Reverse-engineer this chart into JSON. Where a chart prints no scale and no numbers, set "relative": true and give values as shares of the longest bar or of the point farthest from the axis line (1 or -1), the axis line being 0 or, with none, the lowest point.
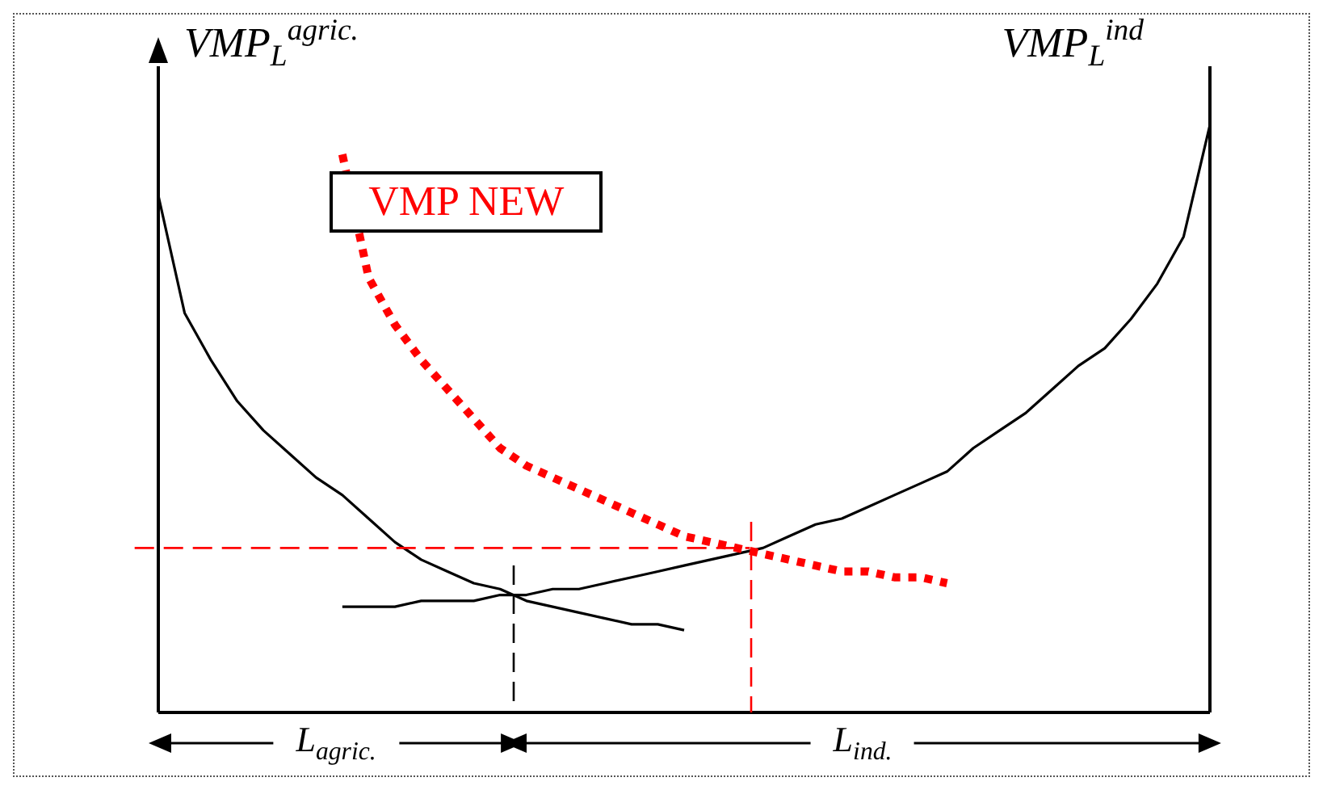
{
  "chart_data": {
    "type": "line",
    "relative": true,
    "ylabel": "VMP$_{L}$$^{agric.}$",
    "y2label": "VMP$_{L}$$^{ind}$",
    "legend": false,
    "grid": false,
    "marker": "none",
    "categories": [
      null,
      null,
      null,
      null,
      null,
      null,
      null,
      null,
      null,
      null,
      null,
      null,
      null,
      null,
      null,
      null,
      null,
      null,
      null,
      null,
      null,
      null,
      null,
      null,
      null,
      null,
      null,
      null,
      null,
      null,
      null,
      null,
      null,
      null,
      null,
      null,
      null,
      null,
      null,
      null,
      null
    ],
    "series": [
      {
        "color": "#000000",
        "line_style": "solid",
        "values": [
          0.88,
          0.68,
          0.6,
          0.53,
          0.48,
          0.44,
          0.4,
          0.37,
          0.33,
          0.29,
          0.26,
          0.24,
          0.22,
          0.21,
          0.19,
          0.18,
          0.17,
          0.16,
          0.15,
          0.15,
          0.14,
          null,
          null,
          null,
          null,
          null,
          null,
          null,
          null,
          null,
          null,
          null,
          null,
          null,
          null,
          null,
          null,
          null,
          null,
          null,
          null
        ]
      },
      {
        "color": "#000000",
        "line_style": "solid",
        "values": [
          null,
          null,
          null,
          null,
          null,
          null,
          null,
          0.18,
          0.18,
          0.18,
          0.19,
          0.19,
          0.19,
          0.2,
          0.2,
          0.21,
          0.21,
          0.22,
          0.23,
          0.24,
          0.25,
          0.26,
          0.27,
          0.28,
          0.3,
          0.32,
          0.33,
          0.35,
          0.37,
          0.39,
          0.41,
          0.45,
          0.48,
          0.51,
          0.55,
          0.59,
          0.62,
          0.67,
          0.73,
          0.81,
          1.0
        ]
      },
      {
        "name": "VMP NEW",
        "color": "#ff0000",
        "line_style": "dotted",
        "values": [
          null,
          null,
          null,
          null,
          null,
          null,
          null,
          0.95,
          0.74,
          0.66,
          0.6,
          0.55,
          0.5,
          0.45,
          0.42,
          0.4,
          0.38,
          0.36,
          0.34,
          0.32,
          0.3,
          0.29,
          0.28,
          0.27,
          0.26,
          0.25,
          0.24,
          0.24,
          0.23,
          0.23,
          0.22,
          null,
          null,
          null,
          null,
          null,
          null,
          null,
          null,
          null,
          null
        ]
      }
    ],
    "ref_lines": [
      {
        "axis": "y",
        "value": 0.28,
        "color": "#ff0000",
        "line_style": "dashed"
      }
    ],
    "annotations": [
      "L$_{agric.}$",
      "L$_{ind.}$"
    ]
  }
}
